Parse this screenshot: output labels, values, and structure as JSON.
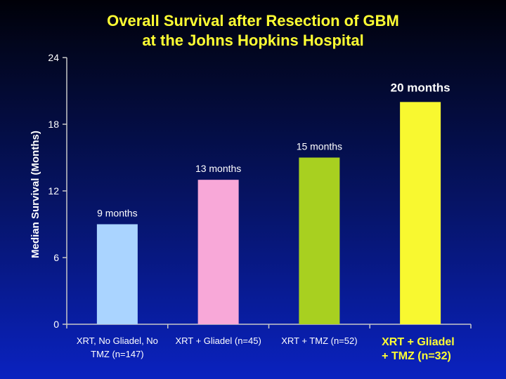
{
  "title": {
    "line1": "Overall Survival after Resection of GBM",
    "line2": "at the Johns Hopkins Hospital"
  },
  "colors": {
    "title": "#ffff33",
    "axis": "#c8c8c8",
    "text": "#ffffff",
    "highlight_text": "#ffff33"
  },
  "chart_data": {
    "type": "bar",
    "ylabel": "Median Survival (Months)",
    "xlabel": "",
    "ylim": [
      0,
      24
    ],
    "yticks": [
      0,
      6,
      12,
      18,
      24
    ],
    "grid": false,
    "categories": [
      {
        "lines": [
          "XRT, No Gliadel, No",
          "TMZ (n=147)"
        ],
        "highlight": false
      },
      {
        "lines": [
          "XRT + Gliadel (n=45)"
        ],
        "highlight": false
      },
      {
        "lines": [
          "XRT + TMZ (n=52)"
        ],
        "highlight": false
      },
      {
        "lines": [
          "XRT + Gliadel",
          "+ TMZ (n=32)"
        ],
        "highlight": true
      }
    ],
    "values": [
      9,
      13,
      15,
      20
    ],
    "data_labels": [
      "9 months",
      "13 months",
      "15 months",
      "20 months"
    ],
    "bar_colors": [
      "#aad4ff",
      "#f8a8d8",
      "#a8d020",
      "#f8f830"
    ]
  }
}
